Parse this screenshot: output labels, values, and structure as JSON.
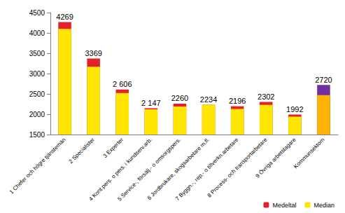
{
  "chart_data": {
    "type": "bar",
    "categories": [
      "1 Chefer och högre tjänstemän",
      "2 Specialister",
      "3 Experter",
      "4 Kont.pers. o pers. i kundserv.arb.",
      "5 Service-, försälj.- o omsorgspers.",
      "6 Jordbrukare, skogsarbetare m.fl.",
      "7 Byggn.-, rep.- o tillverkn.arbetare",
      "8 Process- och transportarbetare",
      "9 Övriga arbetstagare",
      "Kommunsektorn"
    ],
    "series": [
      {
        "name": "Medeltal",
        "values": [
          4269,
          3369,
          2606,
          2147,
          2260,
          2234,
          2196,
          2302,
          1992,
          2720
        ],
        "value_labels": [
          "4269",
          "3369",
          "2 606",
          "2 147",
          "2260",
          "2234",
          "2196",
          "2302",
          "1992",
          "2720"
        ],
        "colors": [
          "#e3202c",
          "#e3202c",
          "#e3202c",
          "#e3202c",
          "#e3202c",
          "#e3202c",
          "#e3202c",
          "#e3202c",
          "#e3202c",
          "#7030a0"
        ]
      },
      {
        "name": "Median",
        "values": [
          4100,
          3170,
          2520,
          2120,
          2190,
          2234,
          2130,
          2230,
          1940,
          2470
        ],
        "colors": [
          "#ffe600",
          "#ffe600",
          "#ffe600",
          "#ffe600",
          "#ffe600",
          "#ffe600",
          "#ffe600",
          "#ffe600",
          "#ffe600",
          "#ffb300"
        ]
      }
    ],
    "ylim": [
      1500,
      4500
    ],
    "yticks": [
      1500,
      2000,
      2500,
      3000,
      3500,
      4000,
      4500
    ],
    "grid": false,
    "legend": "bottom right",
    "data_labels": true
  }
}
